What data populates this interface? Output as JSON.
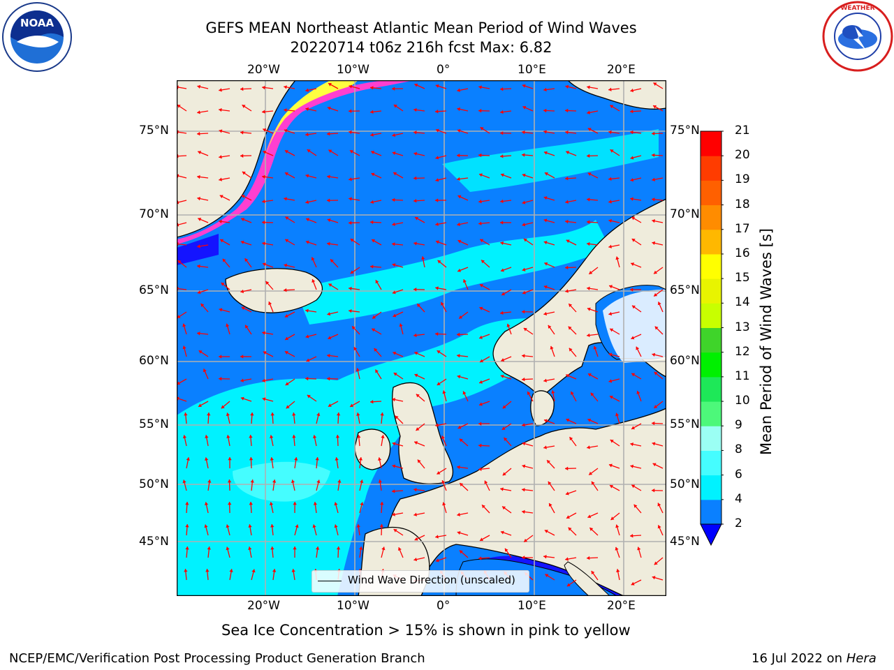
{
  "header": {
    "title_line1": "GEFS MEAN Northeast Atlantic Mean Period of Wind Waves",
    "title_line2": "20220714 t06z 216h fcst   Max: 6.82"
  },
  "logos": {
    "left": "NOAA",
    "right": "NATIONAL WEATHER SERVICE"
  },
  "map": {
    "lon_labels": [
      "20°W",
      "10°W",
      "0°",
      "10°E",
      "20°E"
    ],
    "lat_labels": [
      "75°N",
      "70°N",
      "65°N",
      "60°N",
      "55°N",
      "50°N",
      "45°N"
    ],
    "legend_label": "Wind Wave Direction (unscaled)",
    "colors": {
      "land": "#efecdc",
      "ocean_2_4": "#0a80ff",
      "ocean_4_6": "#00f2ff",
      "ocean_6_8": "#45fdff",
      "below_2": "#1414ff",
      "ice_pink": "#ff3fd0",
      "ice_yellow": "#ffff40",
      "arrow": "#ff0000",
      "grid": "#b0b0b0"
    }
  },
  "colorbar": {
    "title": "Mean Period of Wind Waves [s]",
    "ticks": [
      "2",
      "4",
      "6",
      "8",
      "9",
      "10",
      "11",
      "12",
      "13",
      "14",
      "15",
      "16",
      "17",
      "18",
      "19",
      "20",
      "21"
    ],
    "bins": [
      {
        "from": 2,
        "to": 4,
        "color": "#0a80ff"
      },
      {
        "from": 4,
        "to": 6,
        "color": "#00f2ff"
      },
      {
        "from": 6,
        "to": 8,
        "color": "#45fdff"
      },
      {
        "from": 8,
        "to": 9,
        "color": "#9bfff4"
      },
      {
        "from": 9,
        "to": 10,
        "color": "#4df87a"
      },
      {
        "from": 10,
        "to": 11,
        "color": "#1ee858"
      },
      {
        "from": 11,
        "to": 12,
        "color": "#00f000"
      },
      {
        "from": 12,
        "to": 13,
        "color": "#3fd42a"
      },
      {
        "from": 13,
        "to": 14,
        "color": "#c8ff00"
      },
      {
        "from": 14,
        "to": 15,
        "color": "#e8f400"
      },
      {
        "from": 15,
        "to": 16,
        "color": "#ffff00"
      },
      {
        "from": 16,
        "to": 17,
        "color": "#ffb800"
      },
      {
        "from": 17,
        "to": 18,
        "color": "#ff8c00"
      },
      {
        "from": 18,
        "to": 19,
        "color": "#ff6000"
      },
      {
        "from": 19,
        "to": 20,
        "color": "#ff3c00"
      },
      {
        "from": 20,
        "to": 21,
        "color": "#ff0000"
      }
    ],
    "under_color": "#0000ff"
  },
  "footer": {
    "ice_note": "Sea Ice Concentration > 15% is shown in pink to yellow",
    "producer": "NCEP/EMC/Verification Post Processing Product Generation Branch",
    "date": "16 Jul 2022 on ",
    "host": "Hera"
  }
}
